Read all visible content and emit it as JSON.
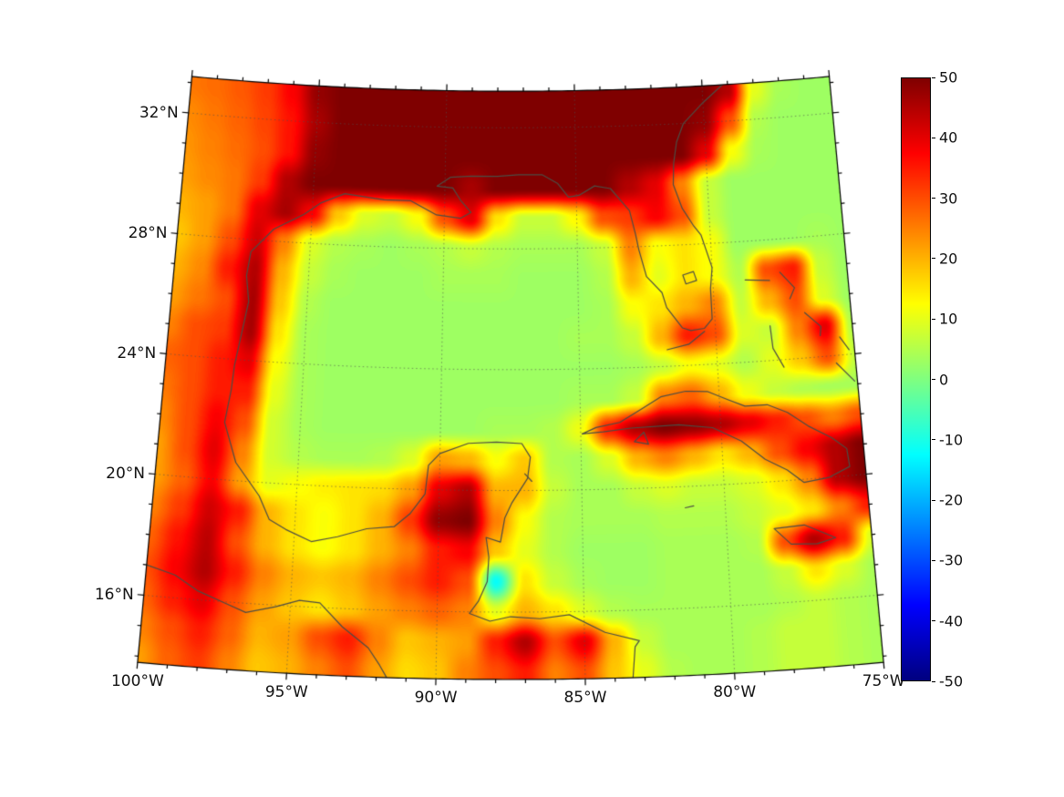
{
  "map": {
    "projection": {
      "type": "lambert_conformal_conic",
      "lat1": 20,
      "lat2": 30,
      "lon0": -87.5,
      "lon_min": -100,
      "lon_max": -75,
      "lat_min": 13.8,
      "lat_max": 33.2
    },
    "frame_color": "#000000",
    "grid_color": "rgba(80,80,80,0.6)",
    "coast_color": "#4d4d44",
    "coastlines": [
      [
        [
          -83.4,
          13.8
        ],
        [
          -83.3,
          14.8
        ],
        [
          -83.15,
          15.0
        ],
        [
          -84.3,
          15.3
        ],
        [
          -85.5,
          15.9
        ],
        [
          -86.5,
          15.78
        ],
        [
          -87.5,
          15.85
        ],
        [
          -88.2,
          15.7
        ],
        [
          -88.9,
          15.95
        ],
        [
          -88.6,
          16.35
        ],
        [
          -88.3,
          17.0
        ],
        [
          -88.25,
          17.8
        ],
        [
          -88.35,
          18.45
        ],
        [
          -87.85,
          18.3
        ],
        [
          -87.7,
          19.1
        ],
        [
          -87.45,
          19.6
        ],
        [
          -86.9,
          20.4
        ],
        [
          -86.8,
          21.1
        ],
        [
          -87.1,
          21.55
        ],
        [
          -88.0,
          21.6
        ],
        [
          -89.0,
          21.55
        ],
        [
          -90.0,
          21.2
        ],
        [
          -90.4,
          20.8
        ],
        [
          -90.5,
          19.85
        ],
        [
          -91.0,
          19.2
        ],
        [
          -91.55,
          18.75
        ],
        [
          -92.5,
          18.65
        ],
        [
          -93.5,
          18.35
        ],
        [
          -94.4,
          18.15
        ],
        [
          -95.3,
          18.5
        ],
        [
          -95.9,
          18.8
        ],
        [
          -96.3,
          19.55
        ],
        [
          -97.2,
          20.6
        ],
        [
          -97.7,
          21.9
        ],
        [
          -97.55,
          23.0
        ],
        [
          -97.5,
          23.8
        ],
        [
          -97.15,
          25.95
        ],
        [
          -97.3,
          26.8
        ],
        [
          -97.2,
          27.6
        ],
        [
          -96.4,
          28.4
        ],
        [
          -95.3,
          28.95
        ],
        [
          -94.7,
          29.35
        ],
        [
          -93.8,
          29.7
        ],
        [
          -92.3,
          29.55
        ],
        [
          -91.3,
          29.55
        ],
        [
          -90.3,
          29.1
        ],
        [
          -89.4,
          29.0
        ],
        [
          -89.0,
          29.2
        ],
        [
          -89.4,
          29.6
        ],
        [
          -89.7,
          30.0
        ],
        [
          -90.3,
          30.05
        ],
        [
          -89.8,
          30.35
        ],
        [
          -89.0,
          30.4
        ],
        [
          -88.0,
          30.4
        ],
        [
          -87.2,
          30.45
        ],
        [
          -86.3,
          30.45
        ],
        [
          -85.7,
          30.15
        ],
        [
          -85.3,
          29.7
        ],
        [
          -84.9,
          29.75
        ],
        [
          -84.3,
          30.05
        ],
        [
          -83.7,
          29.95
        ],
        [
          -83.0,
          29.2
        ],
        [
          -82.8,
          28.4
        ],
        [
          -82.7,
          27.9
        ],
        [
          -82.45,
          27.0
        ],
        [
          -81.9,
          26.45
        ],
        [
          -81.75,
          25.95
        ],
        [
          -81.2,
          25.25
        ],
        [
          -80.9,
          25.15
        ],
        [
          -80.4,
          25.2
        ],
        [
          -80.1,
          25.5
        ],
        [
          -80.1,
          26.5
        ],
        [
          -80.0,
          27.2
        ],
        [
          -80.35,
          28.3
        ],
        [
          -80.6,
          28.6
        ],
        [
          -81.0,
          29.2
        ],
        [
          -81.3,
          30.0
        ],
        [
          -81.25,
          30.7
        ],
        [
          -81.1,
          31.4
        ],
        [
          -80.8,
          32.0
        ],
        [
          -80.0,
          32.65
        ],
        [
          -79.2,
          33.2
        ]
      ],
      [
        [
          -100,
          17.0
        ],
        [
          -99.0,
          16.75
        ],
        [
          -98.2,
          16.3
        ],
        [
          -97.2,
          15.95
        ],
        [
          -96.5,
          15.7
        ],
        [
          -95.5,
          15.95
        ],
        [
          -94.7,
          16.2
        ],
        [
          -94.0,
          16.15
        ],
        [
          -93.2,
          15.4
        ],
        [
          -92.3,
          14.75
        ],
        [
          -91.9,
          14.2
        ],
        [
          -91.65,
          13.8
        ]
      ],
      [
        [
          -84.95,
          21.85
        ],
        [
          -84.45,
          22.05
        ],
        [
          -83.6,
          22.2
        ],
        [
          -82.75,
          22.65
        ],
        [
          -82.1,
          23.0
        ],
        [
          -81.2,
          23.15
        ],
        [
          -80.4,
          23.1
        ],
        [
          -79.7,
          22.8
        ],
        [
          -79.1,
          22.55
        ],
        [
          -78.3,
          22.55
        ],
        [
          -77.6,
          22.25
        ],
        [
          -76.9,
          21.75
        ],
        [
          -76.1,
          21.3
        ],
        [
          -75.6,
          20.9
        ],
        [
          -75.55,
          20.3
        ],
        [
          -76.3,
          20.0
        ],
        [
          -77.2,
          19.9
        ],
        [
          -77.75,
          20.35
        ],
        [
          -78.5,
          20.75
        ],
        [
          -79.3,
          21.4
        ],
        [
          -80.3,
          21.9
        ],
        [
          -81.5,
          22.05
        ],
        [
          -83.2,
          22.0
        ],
        [
          -84.2,
          21.9
        ],
        [
          -84.95,
          21.85
        ]
      ],
      [
        [
          -83.1,
          21.55
        ],
        [
          -82.6,
          21.45
        ],
        [
          -82.75,
          21.85
        ],
        [
          -83.1,
          21.55
        ]
      ],
      [
        [
          -78.35,
          18.45
        ],
        [
          -77.3,
          18.5
        ],
        [
          -76.25,
          18.0
        ],
        [
          -76.9,
          17.85
        ],
        [
          -77.8,
          17.9
        ],
        [
          -78.35,
          18.45
        ]
      ],
      [
        [
          -81.4,
          19.3
        ],
        [
          -81.1,
          19.35
        ]
      ],
      [
        [
          -78.8,
          26.72
        ],
        [
          -77.9,
          26.65
        ]
      ],
      [
        [
          -77.5,
          26.9
        ],
        [
          -77.0,
          26.35
        ],
        [
          -77.2,
          26.0
        ]
      ],
      [
        [
          -78.0,
          25.15
        ],
        [
          -77.95,
          24.4
        ],
        [
          -77.6,
          23.75
        ]
      ],
      [
        [
          -76.7,
          25.5
        ],
        [
          -76.15,
          25.0
        ],
        [
          -76.2,
          24.7
        ]
      ],
      [
        [
          -75.5,
          24.6
        ],
        [
          -75.2,
          24.15
        ]
      ],
      [
        [
          -75.7,
          23.75
        ],
        [
          -75.1,
          23.1
        ]
      ],
      [
        [
          -81.8,
          24.55
        ],
        [
          -81.0,
          24.7
        ],
        [
          -80.4,
          25.1
        ]
      ],
      [
        [
          -81.1,
          27.0
        ],
        [
          -80.7,
          27.1
        ],
        [
          -80.6,
          26.8
        ],
        [
          -81.0,
          26.7
        ],
        [
          -81.1,
          27.0
        ]
      ],
      [
        [
          -87.0,
          20.55
        ],
        [
          -86.75,
          20.3
        ]
      ]
    ]
  },
  "axes": {
    "lat_ticks": [
      {
        "value": 32,
        "label": "32°N"
      },
      {
        "value": 28,
        "label": "28°N"
      },
      {
        "value": 24,
        "label": "24°N"
      },
      {
        "value": 20,
        "label": "20°N"
      },
      {
        "value": 16,
        "label": "16°N"
      }
    ],
    "lon_ticks": [
      {
        "value": -100,
        "label": "100°W"
      },
      {
        "value": -95,
        "label": "95°W"
      },
      {
        "value": -90,
        "label": "90°W"
      },
      {
        "value": -85,
        "label": "85°W"
      },
      {
        "value": -80,
        "label": "80°W"
      },
      {
        "value": -75,
        "label": "75°W"
      }
    ],
    "minor_tick_step_deg": 1
  },
  "colorbar": {
    "min": -50,
    "max": 50,
    "tick_values": [
      50,
      40,
      30,
      20,
      10,
      0,
      -10,
      -20,
      -30,
      -40,
      -50
    ],
    "tick_labels": [
      "50",
      "40",
      "30",
      "20",
      "10",
      "0",
      "-10",
      "-20",
      "-30",
      "-40",
      "-50"
    ],
    "colormap": [
      {
        "t": 0.0,
        "c": "#00007F"
      },
      {
        "t": 0.125,
        "c": "#0000FF"
      },
      {
        "t": 0.375,
        "c": "#00FFFF"
      },
      {
        "t": 0.625,
        "c": "#FFFF00"
      },
      {
        "t": 0.875,
        "c": "#FF0000"
      },
      {
        "t": 1.0,
        "c": "#7F0000"
      }
    ]
  },
  "chart_data": {
    "type": "heatmap",
    "value_range": [
      -50,
      50
    ],
    "legend_position": "right",
    "grid": "dotted",
    "x_tick_labels": [
      "100°W",
      "95°W",
      "90°W",
      "85°W",
      "80°W",
      "75°W"
    ],
    "y_tick_labels": [
      "32°N",
      "28°N",
      "24°N",
      "20°N",
      "16°N"
    ],
    "colorbar_tick_labels": [
      "50",
      "40",
      "30",
      "20",
      "10",
      "0",
      "-10",
      "-20",
      "-30",
      "-40",
      "-50"
    ],
    "lon_grid": {
      "start": -100,
      "step": 1,
      "count": 26
    },
    "lat_grid": {
      "start": 33,
      "step": -1,
      "count": 20
    },
    "values": [
      [
        26,
        27,
        29,
        32,
        38,
        48,
        50,
        50,
        50,
        50,
        50,
        50,
        50,
        50,
        50,
        50,
        50,
        50,
        50,
        50,
        50,
        45,
        10,
        4,
        3,
        3
      ],
      [
        24,
        26,
        28,
        31,
        36,
        46,
        50,
        50,
        50,
        50,
        50,
        50,
        50,
        50,
        50,
        50,
        50,
        50,
        50,
        50,
        48,
        30,
        5,
        3,
        3,
        3
      ],
      [
        23,
        25,
        27,
        30,
        36,
        48,
        50,
        50,
        50,
        50,
        50,
        50,
        50,
        50,
        50,
        50,
        50,
        50,
        50,
        50,
        40,
        12,
        4,
        3,
        3,
        3
      ],
      [
        22,
        24,
        26,
        32,
        45,
        50,
        50,
        50,
        50,
        50,
        50,
        46,
        50,
        50,
        50,
        50,
        50,
        45,
        40,
        25,
        7,
        3,
        3,
        3,
        3,
        3
      ],
      [
        20,
        22,
        26,
        40,
        46,
        38,
        18,
        9,
        7,
        12,
        30,
        40,
        15,
        7,
        7,
        13,
        30,
        32,
        38,
        30,
        7,
        3,
        3,
        3,
        3,
        3
      ],
      [
        18,
        22,
        30,
        42,
        25,
        9,
        5,
        4,
        3,
        4,
        5,
        7,
        5,
        4,
        4,
        4,
        7,
        25,
        12,
        15,
        12,
        3,
        3,
        3,
        4,
        3
      ],
      [
        20,
        24,
        35,
        45,
        20,
        7,
        4,
        3,
        3,
        3,
        4,
        4,
        4,
        3,
        3,
        3,
        5,
        20,
        10,
        15,
        12,
        5,
        30,
        35,
        7,
        3
      ],
      [
        22,
        26,
        30,
        46,
        18,
        5,
        3,
        3,
        3,
        3,
        3,
        3,
        3,
        3,
        3,
        3,
        4,
        12,
        15,
        20,
        25,
        7,
        20,
        30,
        9,
        3
      ],
      [
        25,
        30,
        32,
        46,
        15,
        4,
        3,
        3,
        3,
        3,
        3,
        3,
        3,
        3,
        3,
        4,
        4,
        7,
        20,
        35,
        30,
        9,
        7,
        25,
        40,
        5
      ],
      [
        28,
        30,
        35,
        40,
        12,
        4,
        3,
        3,
        3,
        3,
        3,
        3,
        3,
        3,
        3,
        3,
        3,
        4,
        7,
        12,
        10,
        5,
        10,
        18,
        30,
        7
      ],
      [
        26,
        30,
        35,
        35,
        10,
        4,
        3,
        3,
        3,
        3,
        3,
        3,
        3,
        3,
        3,
        4,
        4,
        7,
        25,
        28,
        20,
        11,
        7,
        5,
        4,
        4
      ],
      [
        24,
        30,
        38,
        30,
        8,
        4,
        3,
        3,
        3,
        3,
        3,
        3,
        4,
        4,
        5,
        11,
        35,
        45,
        50,
        48,
        45,
        40,
        35,
        30,
        25,
        30
      ],
      [
        22,
        30,
        40,
        25,
        8,
        5,
        4,
        4,
        5,
        9,
        22,
        20,
        12,
        18,
        5,
        4,
        9,
        20,
        25,
        20,
        15,
        20,
        30,
        38,
        45,
        50
      ],
      [
        22,
        28,
        38,
        22,
        10,
        12,
        14,
        15,
        16,
        22,
        40,
        45,
        20,
        20,
        7,
        4,
        4,
        7,
        9,
        7,
        7,
        9,
        15,
        25,
        45,
        50
      ],
      [
        25,
        32,
        42,
        35,
        20,
        15,
        12,
        15,
        20,
        32,
        48,
        50,
        25,
        12,
        5,
        4,
        4,
        4,
        5,
        5,
        5,
        7,
        10,
        15,
        25,
        35
      ],
      [
        28,
        36,
        44,
        30,
        20,
        15,
        12,
        15,
        20,
        25,
        35,
        38,
        18,
        10,
        5,
        3,
        3,
        3,
        4,
        4,
        4,
        5,
        30,
        45,
        35,
        9
      ],
      [
        30,
        38,
        45,
        35,
        25,
        20,
        18,
        20,
        25,
        30,
        35,
        30,
        -12,
        15,
        7,
        4,
        3,
        3,
        4,
        4,
        4,
        4,
        7,
        15,
        9,
        4
      ],
      [
        28,
        35,
        40,
        30,
        22,
        18,
        15,
        18,
        22,
        25,
        28,
        25,
        10,
        20,
        15,
        9,
        5,
        4,
        4,
        4,
        4,
        4,
        5,
        7,
        5,
        4
      ],
      [
        25,
        30,
        35,
        28,
        20,
        22,
        30,
        35,
        25,
        18,
        20,
        22,
        35,
        45,
        30,
        40,
        20,
        7,
        4,
        4,
        4,
        5,
        7,
        7,
        5,
        4
      ],
      [
        22,
        28,
        32,
        25,
        18,
        20,
        25,
        30,
        22,
        16,
        18,
        25,
        30,
        35,
        25,
        30,
        18,
        10,
        5,
        4,
        4,
        5,
        7,
        7,
        5,
        4
      ]
    ]
  }
}
